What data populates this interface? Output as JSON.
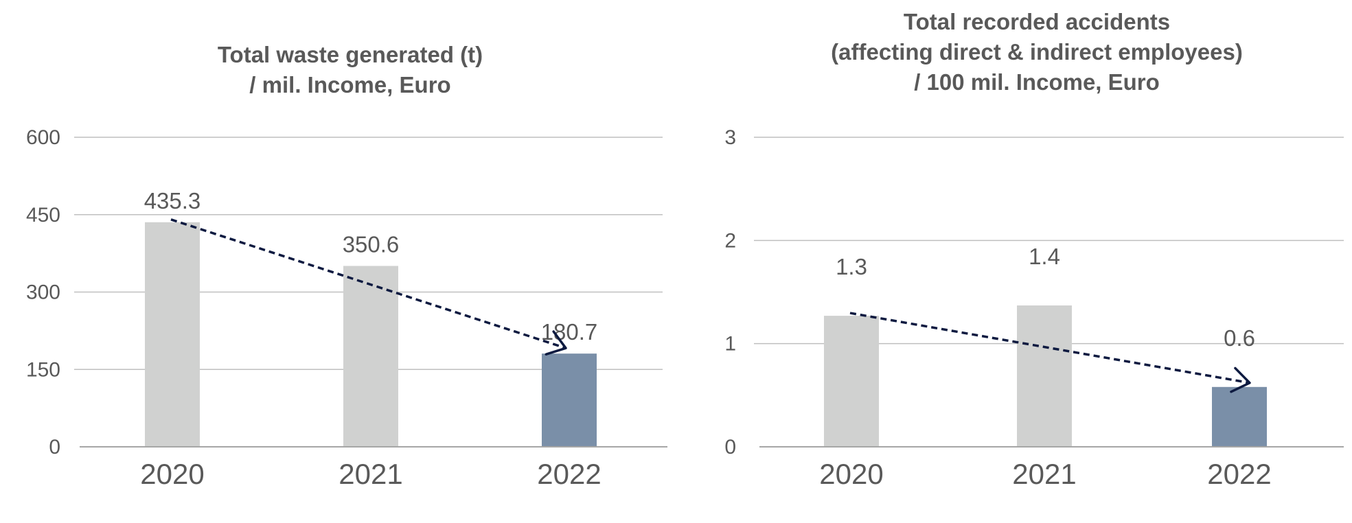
{
  "chart_data": [
    {
      "type": "bar",
      "title_lines": [
        "Total waste generated (t)",
        "/ mil. Income, Euro"
      ],
      "categories": [
        "2020",
        "2021",
        "2022"
      ],
      "values": [
        435.3,
        350.6,
        180.7
      ],
      "value_labels": [
        "435.3",
        "350.6",
        "180.7"
      ],
      "ylim": [
        0,
        600
      ],
      "yticks": [
        0,
        150,
        300,
        450,
        600
      ],
      "ytick_labels": [
        "0",
        "150",
        "300",
        "450",
        "600"
      ],
      "grid": true,
      "legend": "none",
      "bar_colors": [
        "#d0d1d0",
        "#d0d1d0",
        "#7a8fa8"
      ],
      "trend_arrow": {
        "style": "dashed",
        "color": "#0d1a40",
        "direction": "decreasing"
      }
    },
    {
      "type": "bar",
      "title_lines": [
        "Total recorded accidents",
        "(affecting direct & indirect employees)",
        "/ 100 mil. Income, Euro"
      ],
      "categories": [
        "2020",
        "2021",
        "2022"
      ],
      "values": [
        1.27,
        1.37,
        0.58
      ],
      "value_labels": [
        "1.3",
        "1.4",
        "0.6"
      ],
      "ylim": [
        0,
        3
      ],
      "yticks": [
        0,
        1,
        2,
        3
      ],
      "ytick_labels": [
        "0",
        "1",
        "2",
        "3"
      ],
      "grid": true,
      "legend": "none",
      "bar_colors": [
        "#d0d1d0",
        "#d0d1d0",
        "#7a8fa8"
      ],
      "trend_arrow": {
        "style": "dashed",
        "color": "#0d1a40",
        "direction": "decreasing"
      }
    }
  ]
}
